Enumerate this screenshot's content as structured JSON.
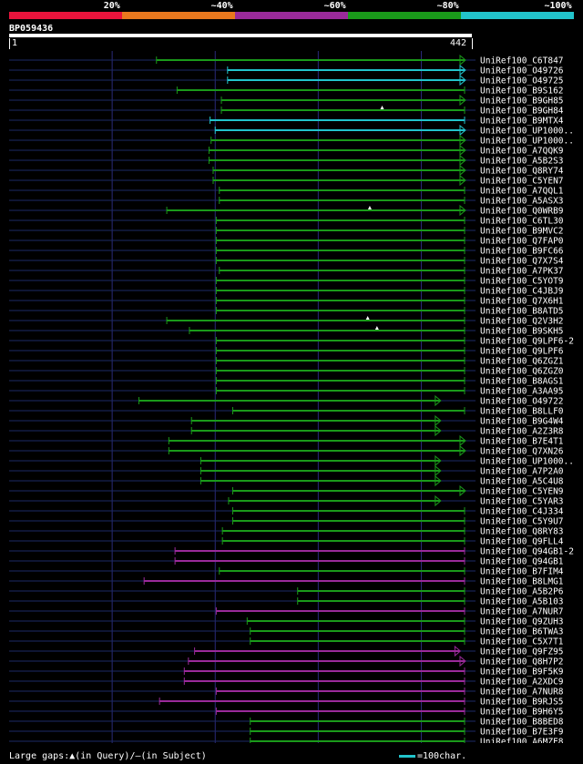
{
  "legend": [
    {
      "label": "20%",
      "color": "#e8143c"
    },
    {
      "label": "~40%",
      "color": "#e8781e"
    },
    {
      "label": "~60%",
      "color": "#9a2a9a"
    },
    {
      "label": "~80%",
      "color": "#1a9a1a"
    },
    {
      "label": "~100%",
      "color": "#22c4cc"
    }
  ],
  "query": {
    "name": "BP059436",
    "start": "1",
    "end": "442"
  },
  "footer": {
    "gaps": "Large gaps:▲(in Query)/–(in Subject)",
    "scale": "=100char."
  },
  "colors": {
    "green": "#1a9a1a",
    "cyan": "#22c4cc",
    "purple": "#9a2a9a",
    "navy": "#1c2a66",
    "grid": "#2a2a7a"
  },
  "chart_data": {
    "type": "alignment",
    "query_length": 442,
    "hits": [
      {
        "name": "UniRef100_C6T847",
        "start": 143,
        "end": 442,
        "color": "green",
        "arrow": true
      },
      {
        "name": "UniRef100_O49726",
        "start": 212,
        "end": 442,
        "color": "cyan",
        "arrow": true
      },
      {
        "name": "UniRef100_O49725",
        "start": 212,
        "end": 442,
        "color": "cyan",
        "arrow": true
      },
      {
        "name": "UniRef100_B9S162",
        "start": 163,
        "end": 442,
        "color": "green",
        "arrow": false
      },
      {
        "name": "UniRef100_B9GH85",
        "start": 206,
        "end": 442,
        "color": "green",
        "arrow": true
      },
      {
        "name": "UniRef100_B9GH84",
        "start": 206,
        "end": 442,
        "color": "green",
        "arrow": false,
        "gaps": [
          362
        ]
      },
      {
        "name": "UniRef100_B9MTX4",
        "start": 195,
        "end": 442,
        "color": "cyan",
        "arrow": false
      },
      {
        "name": "UniRef100_UP1000..",
        "start": 200,
        "end": 442,
        "color": "cyan",
        "arrow": true
      },
      {
        "name": "UniRef100_UP1000..",
        "start": 196,
        "end": 442,
        "color": "green",
        "arrow": true
      },
      {
        "name": "UniRef100_A7QQK9",
        "start": 194,
        "end": 442,
        "color": "green",
        "arrow": true
      },
      {
        "name": "UniRef100_A5B2S3",
        "start": 194,
        "end": 442,
        "color": "green",
        "arrow": true
      },
      {
        "name": "UniRef100_Q8RY74",
        "start": 198,
        "end": 442,
        "color": "green",
        "arrow": true
      },
      {
        "name": "UniRef100_C5YEN7",
        "start": 198,
        "end": 442,
        "color": "green",
        "arrow": true
      },
      {
        "name": "UniRef100_A7QQL1",
        "start": 204,
        "end": 442,
        "color": "green",
        "arrow": false
      },
      {
        "name": "UniRef100_A5ASX3",
        "start": 204,
        "end": 442,
        "color": "green",
        "arrow": false
      },
      {
        "name": "UniRef100_Q0WRB9",
        "start": 153,
        "end": 442,
        "color": "green",
        "arrow": true,
        "gaps": [
          350
        ]
      },
      {
        "name": "UniRef100_C6TL30",
        "start": 201,
        "end": 442,
        "color": "green",
        "arrow": false
      },
      {
        "name": "UniRef100_B9MVC2",
        "start": 201,
        "end": 442,
        "color": "green",
        "arrow": false
      },
      {
        "name": "UniRef100_Q7FAP0",
        "start": 201,
        "end": 442,
        "color": "green",
        "arrow": false
      },
      {
        "name": "UniRef100_B9FC66",
        "start": 201,
        "end": 442,
        "color": "green",
        "arrow": false
      },
      {
        "name": "UniRef100_Q7X7S4",
        "start": 201,
        "end": 442,
        "color": "green",
        "arrow": false
      },
      {
        "name": "UniRef100_A7PK37",
        "start": 204,
        "end": 442,
        "color": "green",
        "arrow": false
      },
      {
        "name": "UniRef100_C5YOT9",
        "start": 201,
        "end": 442,
        "color": "green",
        "arrow": false
      },
      {
        "name": "UniRef100_C4JBJ9",
        "start": 201,
        "end": 442,
        "color": "green",
        "arrow": false
      },
      {
        "name": "UniRef100_Q7X6H1",
        "start": 201,
        "end": 442,
        "color": "green",
        "arrow": false
      },
      {
        "name": "UniRef100_B8ATD5",
        "start": 201,
        "end": 442,
        "color": "green",
        "arrow": false
      },
      {
        "name": "UniRef100_Q2V3H2",
        "start": 153,
        "end": 442,
        "color": "green",
        "arrow": false,
        "gaps": [
          348
        ]
      },
      {
        "name": "UniRef100_B9SKH5",
        "start": 175,
        "end": 442,
        "color": "green",
        "arrow": false,
        "gaps": [
          357
        ]
      },
      {
        "name": "UniRef100_Q9LPF6-2",
        "start": 201,
        "end": 442,
        "color": "green",
        "arrow": false
      },
      {
        "name": "UniRef100_Q9LPF6",
        "start": 201,
        "end": 442,
        "color": "green",
        "arrow": false
      },
      {
        "name": "UniRef100_Q6ZGZ1",
        "start": 201,
        "end": 442,
        "color": "green",
        "arrow": false
      },
      {
        "name": "UniRef100_Q6ZGZ0",
        "start": 201,
        "end": 442,
        "color": "green",
        "arrow": false
      },
      {
        "name": "UniRef100_B8AGS1",
        "start": 201,
        "end": 442,
        "color": "green",
        "arrow": false
      },
      {
        "name": "UniRef100_A3AA95",
        "start": 201,
        "end": 442,
        "color": "green",
        "arrow": false
      },
      {
        "name": "UniRef100_O49722",
        "start": 126,
        "end": 418,
        "color": "green",
        "arrow": true
      },
      {
        "name": "UniRef100_B8LLF0",
        "start": 217,
        "end": 442,
        "color": "green",
        "arrow": false
      },
      {
        "name": "UniRef100_B9G4W4",
        "start": 177,
        "end": 418,
        "color": "green",
        "arrow": true
      },
      {
        "name": "UniRef100_A2Z3R8",
        "start": 177,
        "end": 418,
        "color": "green",
        "arrow": true
      },
      {
        "name": "UniRef100_B7E4T1",
        "start": 155,
        "end": 442,
        "color": "green",
        "arrow": true
      },
      {
        "name": "UniRef100_Q7XN26",
        "start": 155,
        "end": 442,
        "color": "green",
        "arrow": true
      },
      {
        "name": "UniRef100_UP1000..",
        "start": 186,
        "end": 418,
        "color": "green",
        "arrow": true
      },
      {
        "name": "UniRef100_A7P2A0",
        "start": 186,
        "end": 418,
        "color": "green",
        "arrow": true
      },
      {
        "name": "UniRef100_A5C4U8",
        "start": 186,
        "end": 418,
        "color": "green",
        "arrow": true
      },
      {
        "name": "UniRef100_C5YEN9",
        "start": 217,
        "end": 442,
        "color": "green",
        "arrow": true
      },
      {
        "name": "UniRef100_C5YAR3",
        "start": 213,
        "end": 418,
        "color": "green",
        "arrow": true
      },
      {
        "name": "UniRef100_C4J334",
        "start": 217,
        "end": 442,
        "color": "green",
        "arrow": false
      },
      {
        "name": "UniRef100_C5Y9U7",
        "start": 217,
        "end": 442,
        "color": "green",
        "arrow": false
      },
      {
        "name": "UniRef100_Q8RY83",
        "start": 207,
        "end": 442,
        "color": "green",
        "arrow": false
      },
      {
        "name": "UniRef100_Q9FLL4",
        "start": 207,
        "end": 442,
        "color": "green",
        "arrow": false
      },
      {
        "name": "UniRef100_Q94GB1-2",
        "start": 161,
        "end": 442,
        "color": "purple",
        "arrow": false
      },
      {
        "name": "UniRef100_Q94GB1",
        "start": 161,
        "end": 442,
        "color": "purple",
        "arrow": false
      },
      {
        "name": "UniRef100_B7FIM4",
        "start": 204,
        "end": 442,
        "color": "green",
        "arrow": false
      },
      {
        "name": "UniRef100_B8LMG1",
        "start": 131,
        "end": 442,
        "color": "purple",
        "arrow": false
      },
      {
        "name": "UniRef100_A5B2P6",
        "start": 280,
        "end": 442,
        "color": "green",
        "arrow": false
      },
      {
        "name": "UniRef100_A5B103",
        "start": 280,
        "end": 442,
        "color": "green",
        "arrow": false
      },
      {
        "name": "UniRef100_A7NUR7",
        "start": 201,
        "end": 442,
        "color": "purple",
        "arrow": false
      },
      {
        "name": "UniRef100_Q9ZUH3",
        "start": 231,
        "end": 442,
        "color": "green",
        "arrow": false
      },
      {
        "name": "UniRef100_B6TWA3",
        "start": 234,
        "end": 442,
        "color": "green",
        "arrow": false
      },
      {
        "name": "UniRef100_C5X7T1",
        "start": 234,
        "end": 442,
        "color": "green",
        "arrow": false
      },
      {
        "name": "UniRef100_Q9FZ95",
        "start": 180,
        "end": 437,
        "color": "purple",
        "arrow": true
      },
      {
        "name": "UniRef100_Q8H7P2",
        "start": 174,
        "end": 442,
        "color": "purple",
        "arrow": true
      },
      {
        "name": "UniRef100_B9F5K9",
        "start": 170,
        "end": 442,
        "color": "purple",
        "arrow": false
      },
      {
        "name": "UniRef100_A2XDC9",
        "start": 170,
        "end": 442,
        "color": "purple",
        "arrow": false
      },
      {
        "name": "UniRef100_A7NUR8",
        "start": 201,
        "end": 442,
        "color": "purple",
        "arrow": false
      },
      {
        "name": "UniRef100_B9RJS5",
        "start": 146,
        "end": 442,
        "color": "purple",
        "arrow": false
      },
      {
        "name": "UniRef100_B9H6Y5",
        "start": 201,
        "end": 442,
        "color": "purple",
        "arrow": false
      },
      {
        "name": "UniRef100_B8BED8",
        "start": 234,
        "end": 442,
        "color": "green",
        "arrow": false
      },
      {
        "name": "UniRef100_B7E3F9",
        "start": 234,
        "end": 442,
        "color": "green",
        "arrow": false
      },
      {
        "name": "UniRef100_A6MZE8",
        "start": 234,
        "end": 442,
        "color": "green",
        "arrow": false
      }
    ]
  }
}
